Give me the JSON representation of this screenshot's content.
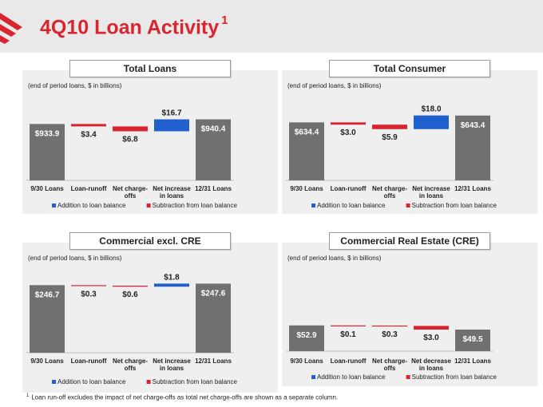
{
  "page": {
    "title": "4Q10 Loan Activity",
    "title_footnote": "1",
    "footnote_marker": "1",
    "footnote": "Loan run-off excludes the impact of net charge-offs as total net charge-offs are shown as a separate column.",
    "colors": {
      "title": "#d9252f",
      "header_bg": "#e9e9e9",
      "panel_bg": "#efefef",
      "bar_gray": "#707070",
      "add_blue": "#1f5fce",
      "sub_red": "#d9252f"
    }
  },
  "chart_data": [
    {
      "type": "bar",
      "title": "Total Loans",
      "subtitle": "(end of period loans, $ in billions)",
      "categories": [
        "9/30 Loans",
        "Loan-runoff",
        "Net charge-offs",
        "Net increase in loans",
        "12/31 Loans"
      ],
      "category_lines": [
        [
          "9/30 Loans"
        ],
        [
          "Loan-runoff"
        ],
        [
          "Net charge-",
          "offs"
        ],
        [
          "Net increase",
          "in loans"
        ],
        [
          "12/31 Loans"
        ]
      ],
      "kinds": [
        "total",
        "sub",
        "sub",
        "add",
        "total"
      ],
      "values": [
        933.9,
        3.4,
        6.8,
        16.7,
        940.4
      ],
      "value_labels": [
        "$933.9",
        "$3.4",
        "$6.8",
        "$16.7",
        "$940.4"
      ],
      "baseline": 855,
      "ylim": [
        855,
        960
      ],
      "legend": [
        {
          "label": "Addition to loan balance",
          "color": "#1f5fce"
        },
        {
          "label": "Subtraction from loan balance",
          "color": "#d9252f"
        }
      ]
    },
    {
      "type": "bar",
      "title": "Total Consumer",
      "subtitle": "(end of period loans, $ in billions)",
      "categories": [
        "9/30 Loans",
        "Loan-runoff",
        "Net charge-offs",
        "Net increase in loans",
        "12/31 Loans"
      ],
      "category_lines": [
        [
          "9/30 Loans"
        ],
        [
          "Loan-runoff"
        ],
        [
          "Net charge-",
          "offs"
        ],
        [
          "Net increase",
          "in loans"
        ],
        [
          "12/31 Loans"
        ]
      ],
      "kinds": [
        "total",
        "sub",
        "sub",
        "add",
        "total"
      ],
      "values": [
        634.4,
        3.0,
        5.9,
        18.0,
        643.4
      ],
      "value_labels": [
        "$634.4",
        "$3.0",
        "$5.9",
        "$18.0",
        "$643.4"
      ],
      "baseline": 558,
      "ylim": [
        558,
        660
      ],
      "legend": [
        {
          "label": "Addition to loan balance",
          "color": "#1f5fce"
        },
        {
          "label": "Subtraction from loan balance",
          "color": "#d9252f"
        }
      ]
    },
    {
      "type": "bar",
      "title": "Commercial excl. CRE",
      "subtitle": "(end of period loans, $ in billions)",
      "categories": [
        "9/30 Loans",
        "Loan-runoff",
        "Net charge-offs",
        "Net increase in loans",
        "12/31 Loans"
      ],
      "category_lines": [
        [
          "9/30 Loans"
        ],
        [
          "Loan-runoff"
        ],
        [
          "Net charge-",
          "offs"
        ],
        [
          "Net increase",
          "in loans"
        ],
        [
          "12/31 Loans"
        ]
      ],
      "kinds": [
        "total",
        "sub",
        "sub",
        "add",
        "total"
      ],
      "values": [
        246.7,
        0.3,
        0.6,
        1.8,
        247.6
      ],
      "value_labels": [
        "$246.7",
        "$0.3",
        "$0.6",
        "$1.8",
        "$247.6"
      ],
      "baseline": 207,
      "ylim": [
        207,
        252
      ],
      "legend": [
        {
          "label": "Addition to loan balance",
          "color": "#1f5fce"
        },
        {
          "label": "Subtraction from loan balance",
          "color": "#d9252f"
        }
      ]
    },
    {
      "type": "bar",
      "title": "Commercial Real Estate (CRE)",
      "subtitle": "(end of period loans, $ in billions)",
      "categories": [
        "9/30 Loans",
        "Loan-runoff",
        "Net charge-offs",
        "Net decrease in loans",
        "12/31 Loans"
      ],
      "category_lines": [
        [
          "9/30 Loans"
        ],
        [
          "Loan-runoff"
        ],
        [
          "Net charge-",
          "offs"
        ],
        [
          "Net decrease",
          "in loans"
        ],
        [
          "12/31 Loans"
        ]
      ],
      "kinds": [
        "total",
        "sub",
        "sub",
        "sub",
        "total"
      ],
      "values": [
        52.9,
        0.1,
        0.3,
        3.0,
        49.5
      ],
      "value_labels": [
        "$52.9",
        "$0.1",
        "$0.3",
        "$3.0",
        "$49.5"
      ],
      "baseline": 32,
      "ylim": [
        32,
        67
      ],
      "legend": [
        {
          "label": "Addition to loan balance",
          "color": "#1f5fce"
        },
        {
          "label": "Subtraction from loan balance",
          "color": "#d9252f"
        }
      ]
    }
  ]
}
